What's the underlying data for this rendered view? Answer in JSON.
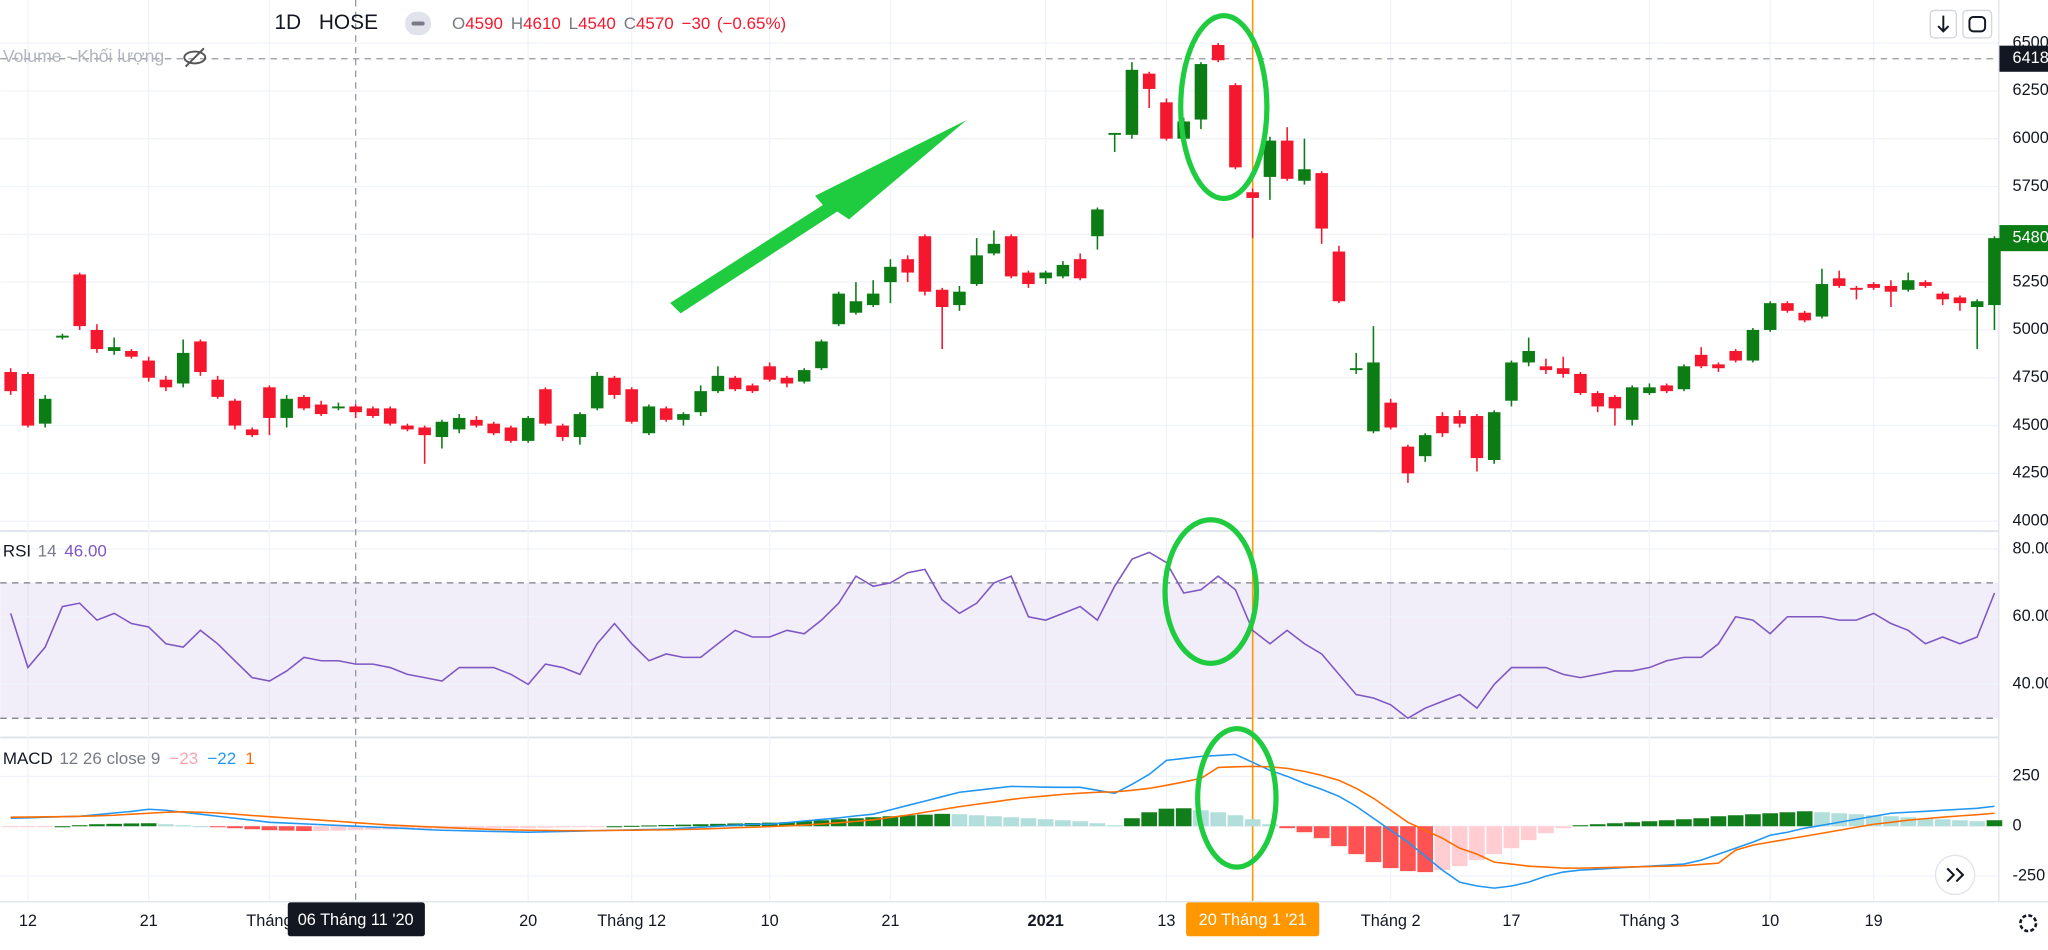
{
  "chart_data": {
    "type": "candlestick",
    "interval": "1D",
    "exchange": "HOSE",
    "legend": {
      "open_label": "O",
      "open": 4590,
      "high_label": "H",
      "high": 4610,
      "low_label": "L",
      "low": 4540,
      "close_label": "C",
      "close": 4570,
      "change": "−30",
      "change_pct": "(−0.65%)"
    },
    "volume_label": "Volume - Khối lượng",
    "categories": [
      null,
      "12",
      null,
      null,
      null,
      null,
      null,
      null,
      "21",
      null,
      null,
      null,
      null,
      null,
      null,
      "Tháng",
      null,
      null,
      null,
      null,
      null,
      null,
      null,
      null,
      null,
      null,
      null,
      null,
      null,
      null,
      "20",
      null,
      null,
      null,
      null,
      null,
      "Tháng 12",
      null,
      null,
      null,
      null,
      null,
      null,
      null,
      "10",
      null,
      null,
      null,
      null,
      null,
      null,
      "21",
      null,
      null,
      null,
      null,
      null,
      null,
      null,
      null,
      "2021",
      null,
      null,
      null,
      null,
      null,
      null,
      "13",
      null,
      null,
      null,
      null,
      null,
      null,
      null,
      null,
      null,
      null,
      null,
      null,
      "Tháng 2",
      null,
      null,
      null,
      null,
      null,
      null,
      "17",
      null,
      null,
      null,
      null,
      null,
      null,
      null,
      "Tháng 3",
      null,
      null,
      null,
      null,
      null,
      null,
      "10",
      null,
      null,
      null,
      null,
      null,
      "19",
      null,
      null,
      null,
      null,
      null,
      null,
      null
    ],
    "crosshair_date": "06 Tháng 11 '20",
    "marker_date": "20 Tháng 1 '21",
    "candles": {
      "up_color": "#0c7c15",
      "down_color": "#f5172d",
      "open": [
        4780,
        4770,
        4510,
        4960,
        5290,
        5000,
        4890,
        4890,
        4840,
        4740,
        4720,
        4940,
        4740,
        4630,
        4480,
        4700,
        4540,
        4650,
        4610,
        4590,
        4600,
        4590,
        4590,
        4500,
        4490,
        4440,
        4480,
        4530,
        4510,
        4490,
        4420,
        4690,
        4500,
        4440,
        4590,
        4750,
        4690,
        4460,
        4590,
        4530,
        4570,
        4680,
        4750,
        4710,
        4810,
        4750,
        4730,
        4800,
        5030,
        5090,
        5130,
        5250,
        5370,
        5490,
        5210,
        5130,
        5240,
        5400,
        5490,
        5300,
        5270,
        5280,
        5370,
        5490,
        6020,
        6020,
        6340,
        6190,
        6000,
        6100,
        6490,
        6280,
        5720,
        5800,
        5990,
        5780,
        5820,
        5410,
        4790,
        4470,
        4620,
        4390,
        4340,
        4550,
        4550,
        4550,
        4320,
        4630,
        4830,
        4810,
        4800,
        4770,
        4670,
        4650,
        4530,
        4670,
        4710,
        4690,
        4870,
        4820,
        4890,
        4840,
        5000,
        5140,
        5090,
        5070,
        5270,
        5220,
        5240,
        5230,
        5210,
        5250,
        5190,
        5170,
        5120,
        5130
      ],
      "high": [
        4800,
        4780,
        4660,
        4980,
        5300,
        5030,
        4960,
        4900,
        4860,
        4760,
        4950,
        4950,
        4760,
        4640,
        4490,
        4710,
        4660,
        4660,
        4630,
        4620,
        4610,
        4600,
        4600,
        4510,
        4500,
        4530,
        4560,
        4550,
        4520,
        4500,
        4550,
        4700,
        4510,
        4570,
        4780,
        4760,
        4700,
        4610,
        4600,
        4570,
        4710,
        4810,
        4760,
        4720,
        4830,
        4760,
        4800,
        4950,
        5200,
        5250,
        5260,
        5370,
        5390,
        5500,
        5220,
        5230,
        5480,
        5520,
        5500,
        5310,
        5310,
        5360,
        5400,
        5640,
        6030,
        6400,
        6350,
        6210,
        6110,
        6400,
        6500,
        6290,
        5740,
        6010,
        6060,
        6000,
        5830,
        5440,
        4880,
        5020,
        4640,
        4400,
        4460,
        4570,
        4580,
        4560,
        4580,
        4840,
        4960,
        4850,
        4860,
        4780,
        4680,
        4660,
        4710,
        4720,
        4720,
        4820,
        4910,
        4830,
        4900,
        5010,
        5150,
        5150,
        5100,
        5320,
        5310,
        5230,
        5250,
        5260,
        5300,
        5260,
        5200,
        5180,
        5160,
        5490
      ],
      "low": [
        4660,
        4490,
        4490,
        4950,
        5000,
        4880,
        4870,
        4850,
        4730,
        4680,
        4700,
        4760,
        4640,
        4480,
        4440,
        4450,
        4490,
        4580,
        4550,
        4580,
        4540,
        4540,
        4500,
        4470,
        4300,
        4380,
        4460,
        4490,
        4450,
        4410,
        4410,
        4500,
        4420,
        4400,
        4580,
        4640,
        4510,
        4450,
        4520,
        4500,
        4550,
        4670,
        4680,
        4670,
        4730,
        4700,
        4720,
        4790,
        5020,
        5080,
        5120,
        5140,
        5250,
        5180,
        4900,
        5100,
        5230,
        5390,
        5270,
        5220,
        5240,
        5270,
        5260,
        5420,
        5930,
        6000,
        6160,
        5990,
        5990,
        6050,
        6400,
        5840,
        5480,
        5680,
        5780,
        5760,
        5450,
        5140,
        4770,
        4460,
        4480,
        4200,
        4310,
        4440,
        4490,
        4260,
        4300,
        4600,
        4810,
        4770,
        4750,
        4660,
        4570,
        4500,
        4500,
        4660,
        4670,
        4680,
        4800,
        4780,
        4830,
        4830,
        4990,
        5090,
        5040,
        5060,
        5220,
        5160,
        5210,
        5120,
        5200,
        5220,
        5130,
        5100,
        4900,
        5000
      ],
      "close": [
        4680,
        4500,
        4640,
        4970,
        5020,
        4900,
        4910,
        4860,
        4750,
        4700,
        4880,
        4780,
        4650,
        4500,
        4450,
        4540,
        4640,
        4590,
        4560,
        4600,
        4570,
        4550,
        4510,
        4480,
        4450,
        4520,
        4540,
        4500,
        4460,
        4420,
        4540,
        4510,
        4440,
        4560,
        4760,
        4660,
        4520,
        4600,
        4530,
        4560,
        4680,
        4760,
        4690,
        4680,
        4740,
        4720,
        4790,
        4940,
        5190,
        5150,
        5190,
        5330,
        5300,
        5200,
        5120,
        5200,
        5390,
        5450,
        5280,
        5240,
        5300,
        5340,
        5270,
        5630,
        6030,
        6360,
        6260,
        6000,
        6090,
        6390,
        6410,
        5850,
        5690,
        5990,
        5790,
        5840,
        5530,
        5150,
        4800,
        4830,
        4490,
        4250,
        4450,
        4460,
        4510,
        4330,
        4570,
        4830,
        4890,
        4790,
        4770,
        4670,
        4600,
        4590,
        4700,
        4700,
        4680,
        4810,
        4810,
        4800,
        4840,
        5000,
        5140,
        5100,
        5050,
        5240,
        5230,
        5210,
        5220,
        5200,
        5260,
        5230,
        5160,
        5140,
        5150,
        5480
      ]
    },
    "ylim": [
      3960,
      6725
    ],
    "yticks": [
      4000,
      4250,
      4500,
      4750,
      5000,
      5250,
      5500,
      5750,
      6000,
      6250,
      6500
    ],
    "grid": true,
    "crosshair_price": 6418,
    "last_price": 5480,
    "rsi": {
      "title": "RSI",
      "period": 14,
      "current": "46.00",
      "color": "#7e57c2",
      "band": [
        30,
        70
      ],
      "ylim": [
        25,
        85
      ],
      "yticks": [
        {
          "value": 40,
          "label": "40.00"
        },
        {
          "value": 60,
          "label": "60.00"
        },
        {
          "value": 80,
          "label": "80.00"
        }
      ],
      "values": [
        61,
        45,
        51,
        63,
        64,
        59,
        61,
        58,
        57,
        52,
        51,
        56,
        52,
        47,
        42,
        41,
        44,
        48,
        47,
        47,
        46,
        46,
        45,
        43,
        42,
        41,
        45,
        45,
        45,
        43,
        40,
        46,
        45,
        43,
        52,
        58,
        52,
        47,
        49,
        48,
        48,
        52,
        56,
        54,
        54,
        56,
        55,
        59,
        64,
        72,
        69,
        70,
        73,
        74,
        65,
        61,
        64,
        70,
        72,
        60,
        59,
        61,
        63,
        59,
        69,
        77,
        79,
        76,
        67,
        68,
        72,
        68,
        56,
        52,
        56,
        52,
        49,
        43,
        37,
        36,
        34,
        30,
        33,
        35,
        37,
        33,
        40,
        45,
        45,
        45,
        43,
        42,
        43,
        44,
        44,
        45,
        47,
        48,
        48,
        52,
        60,
        59,
        55,
        60,
        60,
        60,
        59,
        59,
        61,
        58,
        56,
        52,
        54,
        52,
        54,
        67
      ]
    },
    "macd": {
      "title": "MACD",
      "params": "12 26 close 9",
      "hist_current": "−23",
      "macd_current": "−22",
      "signal_current": "1",
      "ylim": [
        -375,
        440
      ],
      "yticks": [
        -250,
        0,
        250
      ],
      "macd_line": {
        "color": "#2196f3",
        "values": [
          40,
          42,
          45,
          48,
          50,
          58,
          66,
          74,
          85,
          80,
          70,
          60,
          50,
          40,
          30,
          20,
          16,
          12,
          8,
          4,
          0,
          -4,
          -8,
          -12,
          -16,
          -20,
          -22,
          -24,
          -26,
          -28,
          -30,
          -28,
          -26,
          -24,
          -22,
          -20,
          -18,
          -16,
          -15,
          -10,
          -5,
          0,
          5,
          10,
          10,
          18,
          26,
          34,
          42,
          52,
          60,
          82,
          104,
          126,
          148,
          170,
          180,
          190,
          200,
          198,
          196,
          195,
          195,
          180,
          165,
          210,
          260,
          330,
          340,
          350,
          355,
          360,
          320,
          280,
          250,
          215,
          185,
          150,
          100,
          40,
          -20,
          -80,
          -150,
          -220,
          -280,
          -300,
          -310,
          -300,
          -280,
          -250,
          -230,
          -220,
          -215,
          -210,
          -205,
          -200,
          -195,
          -190,
          -170,
          -140,
          -110,
          -80,
          -45,
          -30,
          -10,
          5,
          20,
          35,
          50,
          65,
          70,
          75,
          80,
          85,
          90,
          100
        ]
      },
      "signal_line": {
        "color": "#ff6d00",
        "values": [
          45,
          46,
          47,
          48,
          50,
          52,
          55,
          60,
          65,
          70,
          72,
          70,
          66,
          60,
          54,
          48,
          42,
          36,
          30,
          24,
          18,
          12,
          6,
          2,
          -2,
          -6,
          -10,
          -13,
          -16,
          -18,
          -20,
          -21,
          -22,
          -22,
          -22,
          -21,
          -20,
          -19,
          -18,
          -16,
          -14,
          -11,
          -8,
          -5,
          -2,
          2,
          6,
          11,
          17,
          24,
          32,
          44,
          56,
          70,
          84,
          98,
          110,
          122,
          134,
          144,
          152,
          160,
          166,
          170,
          172,
          180,
          190,
          205,
          222,
          240,
          295,
          298,
          300,
          298,
          290,
          275,
          255,
          230,
          190,
          140,
          80,
          20,
          -20,
          -60,
          -110,
          -140,
          -180,
          -190,
          -200,
          -205,
          -210,
          -210,
          -208,
          -206,
          -204,
          -202,
          -200,
          -198,
          -192,
          -185,
          -120,
          -95,
          -80,
          -65,
          -50,
          -35,
          -20,
          -5,
          10,
          20,
          30,
          38,
          45,
          52,
          58,
          65
        ]
      },
      "histogram": {
        "colors": {
          "pos_up": "#127d1b",
          "pos_down": "#b2dfdb",
          "neg_down": "#ff5252",
          "neg_up": "#ffcdd2"
        },
        "values": [
          -5,
          -5,
          -3,
          0,
          5,
          10,
          12,
          14,
          15,
          10,
          5,
          0,
          -5,
          -10,
          -15,
          -20,
          -22,
          -24,
          -24,
          -22,
          -20,
          -18,
          -16,
          -15,
          -14,
          -13,
          -12,
          -11,
          -10,
          -10,
          -10,
          -8,
          -6,
          -4,
          -2,
          0,
          2,
          4,
          6,
          8,
          10,
          12,
          14,
          16,
          18,
          20,
          25,
          30,
          35,
          40,
          45,
          50,
          55,
          58,
          62,
          60,
          55,
          50,
          45,
          40,
          35,
          30,
          25,
          15,
          5,
          40,
          70,
          88,
          90,
          80,
          70,
          55,
          35,
          10,
          -10,
          -30,
          -60,
          -100,
          -140,
          -180,
          -210,
          -225,
          -230,
          -220,
          -200,
          -170,
          -140,
          -110,
          -70,
          -35,
          -10,
          5,
          10,
          15,
          20,
          25,
          30,
          35,
          40,
          50,
          55,
          60,
          65,
          70,
          75,
          70,
          65,
          60,
          55,
          50,
          45,
          40,
          35,
          30,
          25,
          30
        ]
      }
    }
  }
}
